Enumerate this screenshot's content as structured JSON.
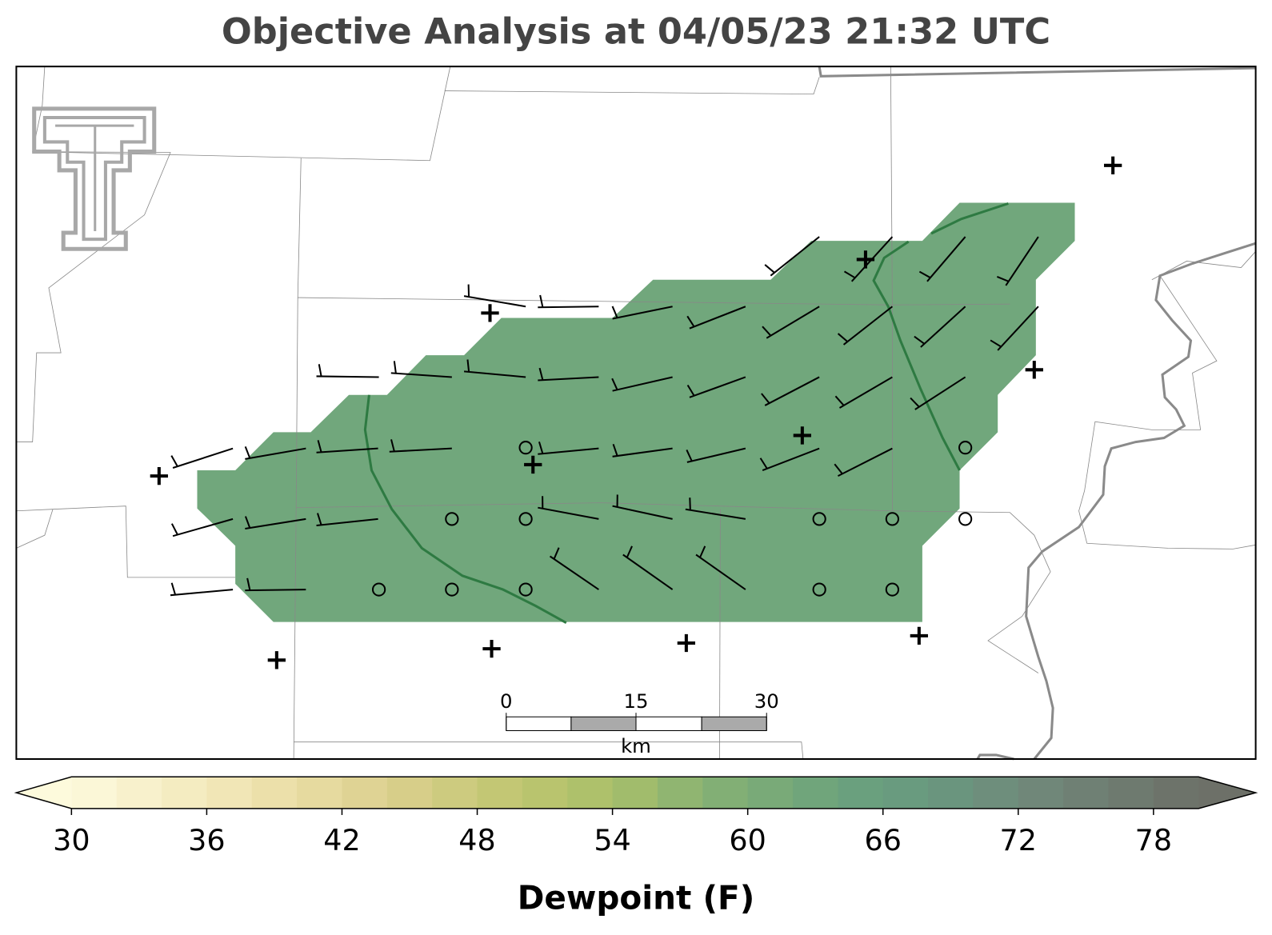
{
  "title": "Objective Analysis at 04/05/23 21:32 UTC",
  "scale_bar": {
    "labels": [
      "0",
      "15",
      "30"
    ],
    "unit": "km"
  },
  "colorbar": {
    "label": "Dewpoint (F)",
    "lim": [
      30,
      80
    ],
    "step": 2,
    "ticks": [
      30,
      36,
      42,
      48,
      54,
      60,
      66,
      72,
      78
    ],
    "color_stops": [
      [
        30,
        "#fdfadc"
      ],
      [
        38,
        "#efe3b0"
      ],
      [
        44,
        "#dcd08e"
      ],
      [
        50,
        "#bec56f"
      ],
      [
        54,
        "#a9bf6a"
      ],
      [
        58,
        "#87b273"
      ],
      [
        64,
        "#6ba27d"
      ],
      [
        68,
        "#68987f"
      ],
      [
        72,
        "#708a7b"
      ],
      [
        80,
        "#6d7068"
      ]
    ]
  }
}
